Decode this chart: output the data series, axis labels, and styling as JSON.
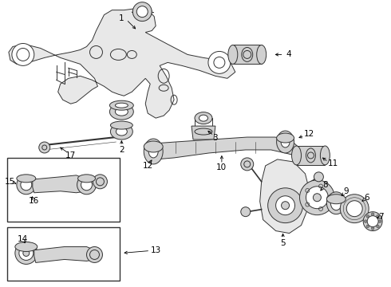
{
  "bg_color": "#ffffff",
  "line_color": "#333333",
  "fig_width": 4.9,
  "fig_height": 3.6,
  "dpi": 100,
  "label_fontsize": 7.5,
  "lw": 0.7,
  "parts": {
    "subframe_color": "#e8e8e8",
    "bushing_color": "#d0d0d0",
    "arm_color": "#d5d5d5"
  }
}
